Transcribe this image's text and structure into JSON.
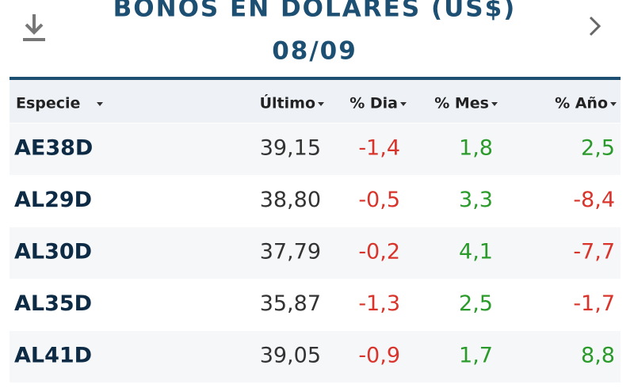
{
  "header": {
    "title": "BONOS EN DOLARES (US$)",
    "date": "08/09"
  },
  "table": {
    "columns": [
      "Especie",
      "Último",
      "% Dia",
      "% Mes",
      "% Año"
    ],
    "rows": [
      [
        "AE38D",
        "39,15",
        "-1,4",
        "1,8",
        "2,5"
      ],
      [
        "AL29D",
        "38,80",
        "-0,5",
        "3,3",
        "-8,4"
      ],
      [
        "AL30D",
        "37,79",
        "-0,2",
        "4,1",
        "-7,7"
      ],
      [
        "AL35D",
        "35,87",
        "-1,3",
        "2,5",
        "-1,7"
      ],
      [
        "AL41D",
        "39,05",
        "-0,9",
        "1,7",
        "8,8"
      ]
    ]
  }
}
